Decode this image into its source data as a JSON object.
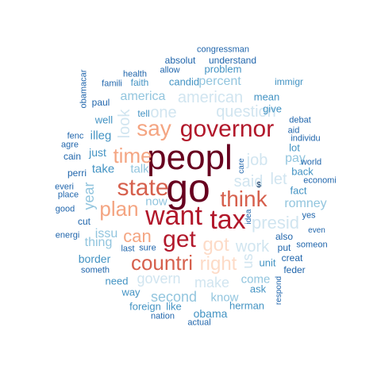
{
  "palette": {
    "darkred": "#67001f",
    "red": "#b2182b",
    "brick": "#d6604d",
    "salmon": "#f4a582",
    "peach": "#fddbc7",
    "pale_blue": "#d1e5f0",
    "light_blue": "#92c5de",
    "mid_blue": "#4393c3",
    "dark_blue": "#2166ac",
    "navy": "#053061"
  },
  "words": [
    {
      "text": "go",
      "color": "darkred",
      "weight": 5
    },
    {
      "text": "peopl",
      "color": "darkred",
      "weight": 5
    },
    {
      "text": "governor",
      "color": "red",
      "weight": 4
    },
    {
      "text": "want",
      "color": "red",
      "weight": 4
    },
    {
      "text": "get",
      "color": "red",
      "weight": 4
    },
    {
      "text": "tax",
      "color": "red",
      "weight": 4
    },
    {
      "text": "state",
      "color": "brick",
      "weight": 4
    },
    {
      "text": "think",
      "color": "brick",
      "weight": 4
    },
    {
      "text": "countri",
      "color": "brick",
      "weight": 4
    },
    {
      "text": "say",
      "color": "salmon",
      "weight": 3
    },
    {
      "text": "time",
      "color": "salmon",
      "weight": 3
    },
    {
      "text": "plan",
      "color": "salmon",
      "weight": 3
    },
    {
      "text": "can",
      "color": "salmon",
      "weight": 3
    },
    {
      "text": "got",
      "color": "peach",
      "weight": 3
    },
    {
      "text": "right",
      "color": "peach",
      "weight": 3
    },
    {
      "text": "question",
      "color": "pale_blue",
      "weight": 2
    },
    {
      "text": "one",
      "color": "pale_blue",
      "weight": 2
    },
    {
      "text": "american",
      "color": "pale_blue",
      "weight": 2
    },
    {
      "text": "look",
      "color": "pale_blue",
      "weight": 2
    },
    {
      "text": "job",
      "color": "pale_blue",
      "weight": 2
    },
    {
      "text": "said",
      "color": "pale_blue",
      "weight": 2
    },
    {
      "text": "let",
      "color": "pale_blue",
      "weight": 2
    },
    {
      "text": "presid",
      "color": "pale_blue",
      "weight": 2
    },
    {
      "text": "work",
      "color": "pale_blue",
      "weight": 2
    },
    {
      "text": "make",
      "color": "pale_blue",
      "weight": 2
    },
    {
      "text": "govern",
      "color": "pale_blue",
      "weight": 2
    },
    {
      "text": "us",
      "color": "pale_blue",
      "weight": 2
    },
    {
      "text": "percent",
      "color": "light_blue",
      "weight": 2
    },
    {
      "text": "america",
      "color": "light_blue",
      "weight": 2
    },
    {
      "text": "talk",
      "color": "light_blue",
      "weight": 2
    },
    {
      "text": "now",
      "color": "light_blue",
      "weight": 2
    },
    {
      "text": "year",
      "color": "light_blue",
      "weight": 2
    },
    {
      "text": "issu",
      "color": "light_blue",
      "weight": 2
    },
    {
      "text": "thing",
      "color": "light_blue",
      "weight": 2
    },
    {
      "text": "second",
      "color": "light_blue",
      "weight": 2
    },
    {
      "text": "know",
      "color": "light_blue",
      "weight": 2
    },
    {
      "text": "come",
      "color": "light_blue",
      "weight": 2
    },
    {
      "text": "pay",
      "color": "light_blue",
      "weight": 2
    },
    {
      "text": "romney",
      "color": "light_blue",
      "weight": 2
    },
    {
      "text": "candid",
      "color": "mid_blue",
      "weight": 1
    },
    {
      "text": "faith",
      "color": "mid_blue",
      "weight": 1
    },
    {
      "text": "tell",
      "color": "mid_blue",
      "weight": 1
    },
    {
      "text": "well",
      "color": "mid_blue",
      "weight": 1
    },
    {
      "text": "illeg",
      "color": "mid_blue",
      "weight": 1
    },
    {
      "text": "just",
      "color": "mid_blue",
      "weight": 1
    },
    {
      "text": "take",
      "color": "mid_blue",
      "weight": 1
    },
    {
      "text": "border",
      "color": "mid_blue",
      "weight": 1
    },
    {
      "text": "need",
      "color": "mid_blue",
      "weight": 1
    },
    {
      "text": "way",
      "color": "mid_blue",
      "weight": 1
    },
    {
      "text": "foreign",
      "color": "mid_blue",
      "weight": 1
    },
    {
      "text": "like",
      "color": "mid_blue",
      "weight": 1
    },
    {
      "text": "obama",
      "color": "mid_blue",
      "weight": 1
    },
    {
      "text": "herman",
      "color": "mid_blue",
      "weight": 1
    },
    {
      "text": "ask",
      "color": "mid_blue",
      "weight": 1
    },
    {
      "text": "unit",
      "color": "mid_blue",
      "weight": 1
    },
    {
      "text": "fact",
      "color": "mid_blue",
      "weight": 1
    },
    {
      "text": "back",
      "color": "mid_blue",
      "weight": 1
    },
    {
      "text": "lot",
      "color": "mid_blue",
      "weight": 1
    },
    {
      "text": "give",
      "color": "mid_blue",
      "weight": 1
    },
    {
      "text": "mean",
      "color": "mid_blue",
      "weight": 1
    },
    {
      "text": "immigr",
      "color": "mid_blue",
      "weight": 1
    },
    {
      "text": "problem",
      "color": "mid_blue",
      "weight": 1
    },
    {
      "text": "understand",
      "color": "dark_blue",
      "weight": 0
    },
    {
      "text": "absolut",
      "color": "dark_blue",
      "weight": 0
    },
    {
      "text": "congressman",
      "color": "dark_blue",
      "weight": 0
    },
    {
      "text": "allow",
      "color": "dark_blue",
      "weight": 0
    },
    {
      "text": "health",
      "color": "dark_blue",
      "weight": 0
    },
    {
      "text": "famili",
      "color": "dark_blue",
      "weight": 0
    },
    {
      "text": "obamacar",
      "color": "dark_blue",
      "weight": 0
    },
    {
      "text": "paul",
      "color": "dark_blue",
      "weight": 0
    },
    {
      "text": "fenc",
      "color": "dark_blue",
      "weight": 0
    },
    {
      "text": "agre",
      "color": "dark_blue",
      "weight": 0
    },
    {
      "text": "cain",
      "color": "dark_blue",
      "weight": 0
    },
    {
      "text": "perri",
      "color": "dark_blue",
      "weight": 0
    },
    {
      "text": "everi",
      "color": "dark_blue",
      "weight": 0
    },
    {
      "text": "place",
      "color": "dark_blue",
      "weight": 0
    },
    {
      "text": "good",
      "color": "dark_blue",
      "weight": 0
    },
    {
      "text": "energi",
      "color": "dark_blue",
      "weight": 0
    },
    {
      "text": "cut",
      "color": "dark_blue",
      "weight": 0
    },
    {
      "text": "someth",
      "color": "dark_blue",
      "weight": 0
    },
    {
      "text": "last",
      "color": "dark_blue",
      "weight": 0
    },
    {
      "text": "sure",
      "color": "dark_blue",
      "weight": 0
    },
    {
      "text": "nation",
      "color": "dark_blue",
      "weight": 0
    },
    {
      "text": "actual",
      "color": "dark_blue",
      "weight": 0
    },
    {
      "text": "respond",
      "color": "dark_blue",
      "weight": 0
    },
    {
      "text": "feder",
      "color": "dark_blue",
      "weight": 0
    },
    {
      "text": "creat",
      "color": "dark_blue",
      "weight": 0
    },
    {
      "text": "someon",
      "color": "dark_blue",
      "weight": 0
    },
    {
      "text": "also",
      "color": "dark_blue",
      "weight": 0
    },
    {
      "text": "even",
      "color": "dark_blue",
      "weight": 0
    },
    {
      "text": "yes",
      "color": "dark_blue",
      "weight": 0
    },
    {
      "text": "put",
      "color": "dark_blue",
      "weight": 0
    },
    {
      "text": "economi",
      "color": "dark_blue",
      "weight": 0
    },
    {
      "text": "world",
      "color": "dark_blue",
      "weight": 0
    },
    {
      "text": "individu",
      "color": "dark_blue",
      "weight": 0
    },
    {
      "text": "aid",
      "color": "dark_blue",
      "weight": 0
    },
    {
      "text": "debat",
      "color": "dark_blue",
      "weight": 0
    },
    {
      "text": "care",
      "color": "dark_blue",
      "weight": 0
    },
    {
      "text": "idea",
      "color": "dark_blue",
      "weight": 0
    },
    {
      "text": "$",
      "color": "navy",
      "weight": 0
    }
  ]
}
